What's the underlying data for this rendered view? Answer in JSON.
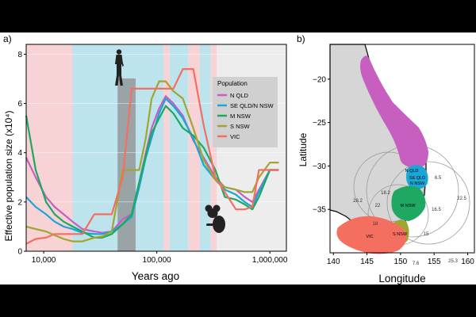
{
  "chart_data": [
    {
      "panel_label": "a)",
      "type": "line",
      "xscale": "log",
      "xlabel": "Years ago",
      "ylabel": "Effective population size (x10⁴)",
      "xlim": [
        7000,
        1400000
      ],
      "ylim": [
        0,
        8.4
      ],
      "x_ticks": [
        10000,
        100000,
        1000000
      ],
      "x_tick_labels": [
        "10,000",
        "100,000",
        "1,000,000"
      ],
      "y_ticks": [
        0,
        2,
        4,
        6,
        8
      ],
      "legend": {
        "title": "Population",
        "position": "top-right"
      },
      "background_bands": [
        {
          "from": 7000,
          "to": 18000,
          "color": "#f7d3d6"
        },
        {
          "from": 18000,
          "to": 115000,
          "color": "#bde3ec"
        },
        {
          "from": 115000,
          "to": 130000,
          "color": "#f7d3d6"
        },
        {
          "from": 130000,
          "to": 190000,
          "color": "#bde3ec"
        },
        {
          "from": 190000,
          "to": 240000,
          "color": "#f7d3d6"
        },
        {
          "from": 240000,
          "to": 300000,
          "color": "#bde3ec"
        },
        {
          "from": 300000,
          "to": 340000,
          "color": "#f7d3d6"
        },
        {
          "from": 340000,
          "to": 1400000,
          "color": "#ededed"
        }
      ],
      "shaded_period": {
        "from": 45000,
        "to": 65000,
        "color": "#9aa3a6"
      },
      "series": [
        {
          "name": "N QLD",
          "color": "#c65fc0",
          "x": [
            7000,
            8500,
            10500,
            12500,
            15000,
            18000,
            22000,
            28000,
            33000,
            40000,
            50000,
            60000,
            70000,
            80000,
            90000,
            105000,
            120000,
            140000,
            170000,
            210000,
            260000,
            330000,
            400000,
            500000,
            600000,
            700000,
            800000,
            1000000,
            1200000
          ],
          "y": [
            3.8,
            3.0,
            2.2,
            1.8,
            1.5,
            1.2,
            0.9,
            0.8,
            0.75,
            0.8,
            1.3,
            1.5,
            2.8,
            4.0,
            5.0,
            5.8,
            6.3,
            6.0,
            5.5,
            4.5,
            3.8,
            3.0,
            2.6,
            2.5,
            2.2,
            2.0,
            2.5,
            3.3,
            3.3
          ]
        },
        {
          "name": "SE QLD/N NSW",
          "color": "#1aa6d6",
          "x": [
            7000,
            8500,
            10500,
            12500,
            15000,
            18000,
            22000,
            28000,
            33000,
            40000,
            50000,
            60000,
            70000,
            80000,
            90000,
            105000,
            120000,
            140000,
            170000,
            210000,
            260000,
            330000,
            400000,
            500000,
            600000,
            700000,
            800000,
            1000000,
            1200000
          ],
          "y": [
            2.2,
            1.8,
            1.5,
            1.2,
            1.0,
            0.9,
            0.75,
            0.7,
            0.7,
            0.8,
            1.1,
            1.4,
            2.6,
            3.8,
            4.6,
            5.6,
            6.2,
            5.9,
            5.4,
            4.6,
            3.5,
            2.9,
            2.5,
            2.3,
            2.0,
            1.8,
            2.4,
            3.3,
            3.3
          ]
        },
        {
          "name": "M NSW",
          "color": "#1ea862",
          "x": [
            7000,
            8500,
            10500,
            12500,
            15000,
            18000,
            22000,
            28000,
            33000,
            40000,
            50000,
            60000,
            70000,
            80000,
            90000,
            105000,
            120000,
            140000,
            170000,
            210000,
            260000,
            330000,
            400000,
            500000,
            600000,
            700000,
            800000,
            1000000,
            1200000
          ],
          "y": [
            5.5,
            3.3,
            2.0,
            1.5,
            1.2,
            1.0,
            0.8,
            0.55,
            0.55,
            0.7,
            1.1,
            1.5,
            2.8,
            3.9,
            4.8,
            5.4,
            5.9,
            5.6,
            5.0,
            4.7,
            4.2,
            3.3,
            2.2,
            2.1,
            1.9,
            1.7,
            2.2,
            3.3,
            3.3
          ]
        },
        {
          "name": "S NSW",
          "color": "#a0a630",
          "x": [
            7000,
            8500,
            10500,
            12500,
            15000,
            18000,
            22000,
            28000,
            33000,
            40000,
            50000,
            60000,
            70000,
            80000,
            90000,
            105000,
            120000,
            140000,
            170000,
            210000,
            260000,
            330000,
            400000,
            500000,
            600000,
            700000,
            800000,
            1000000,
            1200000
          ],
          "y": [
            1.0,
            0.9,
            0.8,
            0.65,
            0.5,
            0.4,
            0.4,
            0.55,
            0.6,
            0.8,
            3.3,
            3.3,
            3.3,
            4.6,
            6.2,
            6.9,
            6.9,
            6.5,
            6.2,
            5.0,
            3.7,
            2.9,
            2.6,
            2.5,
            2.4,
            2.4,
            3.0,
            3.6,
            3.6
          ]
        },
        {
          "name": "VIC",
          "color": "#f46f5f",
          "x": [
            7000,
            8500,
            10500,
            12500,
            15000,
            18000,
            22000,
            28000,
            33000,
            40000,
            50000,
            60000,
            70000,
            80000,
            90000,
            105000,
            120000,
            140000,
            170000,
            210000,
            260000,
            330000,
            400000,
            500000,
            600000,
            700000,
            800000,
            1000000,
            1200000
          ],
          "y": [
            0.3,
            0.5,
            0.55,
            0.7,
            0.7,
            0.7,
            0.7,
            1.5,
            1.5,
            1.5,
            3.0,
            6.6,
            6.6,
            6.6,
            6.6,
            6.6,
            6.6,
            6.6,
            7.4,
            7.4,
            5.1,
            3.0,
            2.4,
            1.7,
            1.7,
            1.8,
            3.3,
            3.3,
            3.3
          ]
        }
      ]
    },
    {
      "panel_label": "b)",
      "type": "map",
      "xlabel": "Longitude",
      "ylabel": "Latitude",
      "xlim": [
        139.5,
        161
      ],
      "ylim": [
        -40,
        -16
      ],
      "x_ticks": [
        140,
        145,
        150,
        155,
        160
      ],
      "y_ticks": [
        -20,
        -25,
        -30,
        -35
      ],
      "regions": [
        {
          "name": "N QLD",
          "label": "N QLD",
          "color": "#c65fc0"
        },
        {
          "name": "SE QLD/N NSW",
          "label": "SE QLD\nN NSW",
          "color": "#1aa6d6"
        },
        {
          "name": "M NSW",
          "label": "M NSW",
          "color": "#1ea862"
        },
        {
          "name": "S NSW",
          "label": "S NSW",
          "color": "#a0a630"
        },
        {
          "name": "VIC",
          "label": "VIC",
          "color": "#f46f5f"
        }
      ],
      "circle_labels": [
        "6.5",
        "16.5",
        "15",
        "7.6",
        "18.2",
        "22",
        "18",
        "28.2",
        "22.5",
        "25.3"
      ]
    }
  ]
}
